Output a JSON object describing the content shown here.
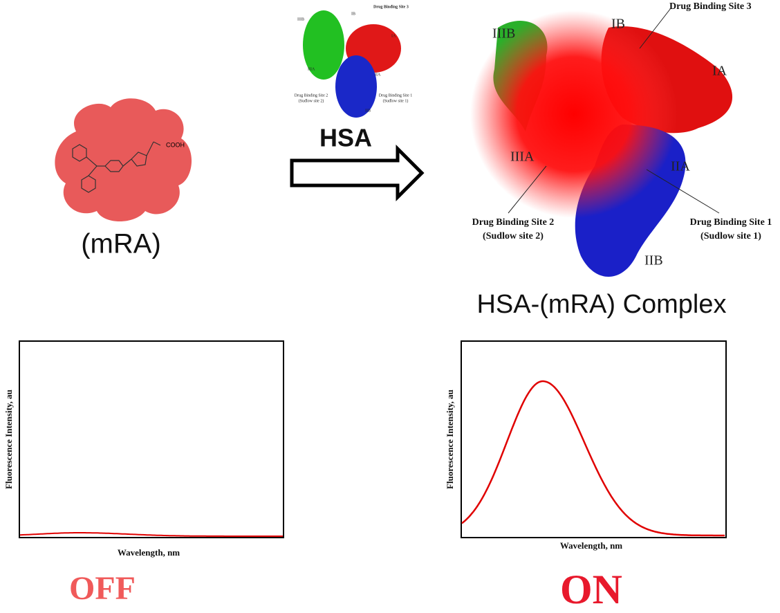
{
  "molecule": {
    "label": "(mRA)",
    "group": "COOH"
  },
  "arrow_label": "HSA",
  "small_protein": {
    "domains": [
      "IIIB",
      "IB",
      "IA",
      "IIIA",
      "IIA",
      "IIB"
    ],
    "site3": "Drug Binding Site 3",
    "site2": [
      "Drug Binding Site 2",
      "(Sudlow site 2)"
    ],
    "site1": [
      "Drug Binding Site 1",
      "(Sudlow site 1)"
    ]
  },
  "complex": {
    "title": "HSA-(mRA) Complex",
    "domains": [
      "IIIB",
      "IB",
      "IA",
      "IIIA",
      "IIA",
      "IIB"
    ],
    "site3": "Drug Binding Site 3",
    "site2": [
      "Drug Binding Site 2",
      "(Sudlow site 2)"
    ],
    "site1": [
      "Drug Binding Site 1",
      "(Sudlow site 1)"
    ]
  },
  "plots": [
    {
      "y_label": "Fluorescence Intensity, au",
      "x_label": "Wavelength, nm",
      "state": "OFF"
    },
    {
      "y_label": "Fluorescence Intensity, au",
      "x_label": "Wavelength, nm",
      "state": "ON"
    }
  ]
}
